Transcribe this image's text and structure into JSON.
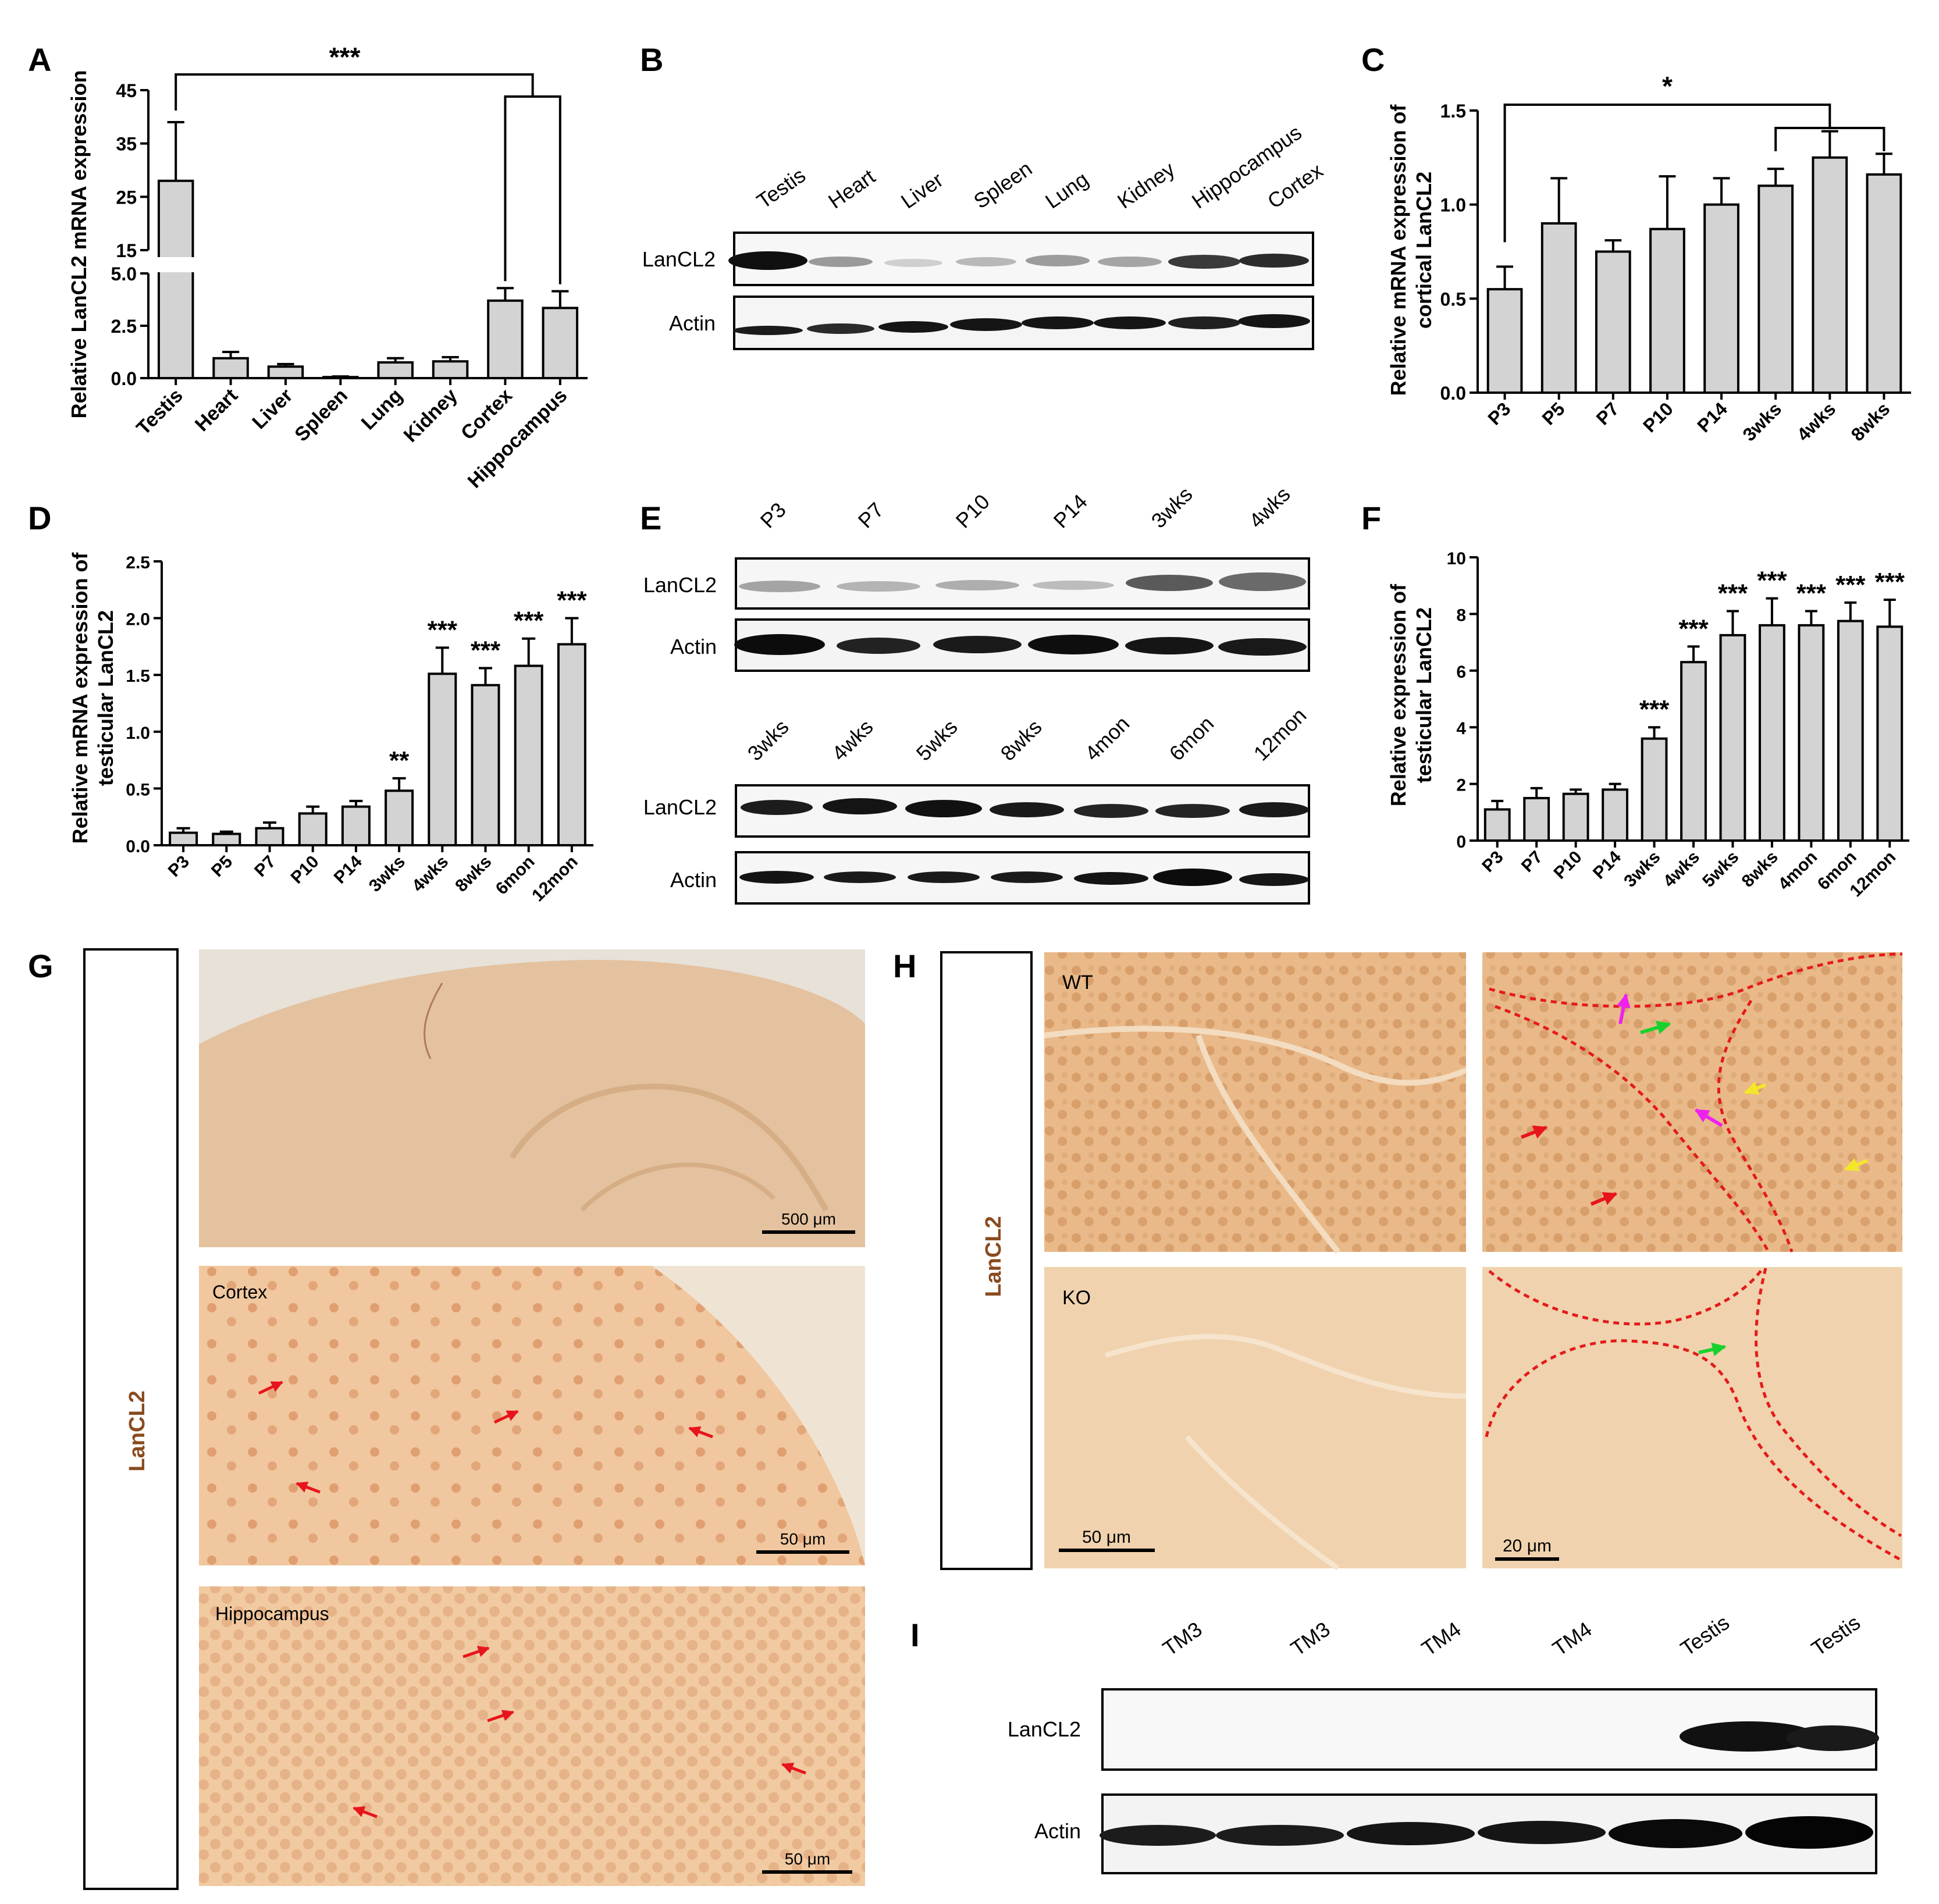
{
  "panels": {
    "A": {
      "letter": "A",
      "ylabel": "Relative LanCL2 mRNA expression",
      "sig": "***",
      "ticks_upper": [
        "45",
        "35",
        "25",
        "15"
      ],
      "ticks_lower": [
        "5.0",
        "2.5",
        "0.0"
      ]
    },
    "B": {
      "letter": "B",
      "lanes": [
        "Testis",
        "Heart",
        "Liver",
        "Spleen",
        "Lung",
        "Kidney",
        "Hippocampus",
        "Cortex"
      ],
      "rows": [
        "LanCL2",
        "Actin"
      ]
    },
    "C": {
      "letter": "C",
      "ylabel_lines": [
        "Relative mRNA expression of",
        "cortical LanCL2"
      ],
      "sig": "*"
    },
    "D": {
      "letter": "D",
      "ylabel_lines": [
        "Relative mRNA expression of",
        "testicular LanCL2"
      ]
    },
    "E": {
      "letter": "E",
      "lanes_top": [
        "P3",
        "P7",
        "P10",
        "P14",
        "3wks",
        "4wks"
      ],
      "lanes_bottom": [
        "3wks",
        "4wks",
        "5wks",
        "8wks",
        "4mon",
        "6mon",
        "12mon"
      ],
      "rows": [
        "LanCL2",
        "Actin"
      ]
    },
    "F": {
      "letter": "F",
      "ylabel_lines": [
        "Relative expression of",
        "testicular LanCL2"
      ]
    },
    "G": {
      "letter": "G",
      "side_label": "LanCL2",
      "labels": [
        "Cortex",
        "Hippocampus"
      ],
      "scales": [
        "500 μm",
        "50 μm",
        "50 μm"
      ]
    },
    "H": {
      "letter": "H",
      "side_label": "LanCL2",
      "labels": [
        "WT",
        "KO"
      ],
      "scales": [
        "50 μm",
        "20 μm"
      ]
    },
    "I": {
      "letter": "I",
      "lanes": [
        "TM3",
        "TM3",
        "TM4",
        "TM4",
        "Testis",
        "Testis"
      ],
      "rows": [
        "LanCL2",
        "Actin"
      ]
    }
  },
  "chart_data": [
    {
      "id": "A",
      "type": "bar",
      "categories": [
        "Testis",
        "Heart",
        "Liver",
        "Spleen",
        "Lung",
        "Kidney",
        "Cortex",
        "Hippocampus"
      ],
      "values": [
        28,
        0.95,
        0.55,
        0.05,
        0.75,
        0.8,
        3.7,
        3.35
      ],
      "errors": [
        11,
        0.3,
        0.12,
        0.03,
        0.2,
        0.2,
        0.6,
        0.8
      ],
      "ylim": [
        0,
        45
      ],
      "axis_break": [
        5,
        15
      ],
      "annotations": [
        "***"
      ]
    },
    {
      "id": "C",
      "type": "bar",
      "categories": [
        "P3",
        "P5",
        "P7",
        "P10",
        "P14",
        "3wks",
        "4wks",
        "8wks"
      ],
      "values": [
        0.55,
        0.9,
        0.75,
        0.87,
        1.0,
        1.1,
        1.25,
        1.16
      ],
      "errors": [
        0.12,
        0.24,
        0.06,
        0.28,
        0.14,
        0.09,
        0.14,
        0.11
      ],
      "ylim": [
        0,
        1.5
      ],
      "yticks": [
        "0.0",
        "0.5",
        "1.0",
        "1.5"
      ],
      "annotations": [
        "*"
      ]
    },
    {
      "id": "D",
      "type": "bar",
      "categories": [
        "P3",
        "P5",
        "P7",
        "P10",
        "P14",
        "3wks",
        "4wks",
        "8wks",
        "6mon",
        "12mon"
      ],
      "values": [
        0.11,
        0.1,
        0.15,
        0.28,
        0.34,
        0.48,
        1.51,
        1.41,
        1.58,
        1.77
      ],
      "errors": [
        0.04,
        0.02,
        0.05,
        0.06,
        0.05,
        0.11,
        0.23,
        0.15,
        0.24,
        0.23
      ],
      "ylim": [
        0,
        2.5
      ],
      "yticks": [
        "0.0",
        "0.5",
        "1.0",
        "1.5",
        "2.0",
        "2.5"
      ],
      "stars": [
        "",
        "",
        "",
        "",
        "",
        "**",
        "***",
        "***",
        "***",
        "***"
      ]
    },
    {
      "id": "F",
      "type": "bar",
      "categories": [
        "P3",
        "P7",
        "P10",
        "P14",
        "3wks",
        "4wks",
        "5wks",
        "8wks",
        "4mon",
        "6mon",
        "12mon"
      ],
      "values": [
        1.1,
        1.5,
        1.65,
        1.8,
        3.6,
        6.3,
        7.25,
        7.6,
        7.6,
        7.75,
        7.55
      ],
      "errors": [
        0.3,
        0.35,
        0.15,
        0.2,
        0.4,
        0.55,
        0.85,
        0.95,
        0.5,
        0.65,
        0.95
      ],
      "ylim": [
        0,
        10
      ],
      "yticks": [
        "0",
        "2",
        "4",
        "6",
        "8",
        "10"
      ],
      "stars": [
        "",
        "",
        "",
        "",
        "***",
        "***",
        "***",
        "***",
        "***",
        "***",
        "***"
      ]
    }
  ],
  "colors": {
    "bar": "#d3d3d3",
    "tissue": "#e9b989",
    "tissue_pale": "#f1d6b3",
    "arrow_red": "#e8141c",
    "arrow_green": "#19d12e",
    "arrow_yellow": "#f4e72a",
    "arrow_magenta": "#ee22ee",
    "dashed": "#e41b1b",
    "label_brown": "#8a4b1f"
  }
}
